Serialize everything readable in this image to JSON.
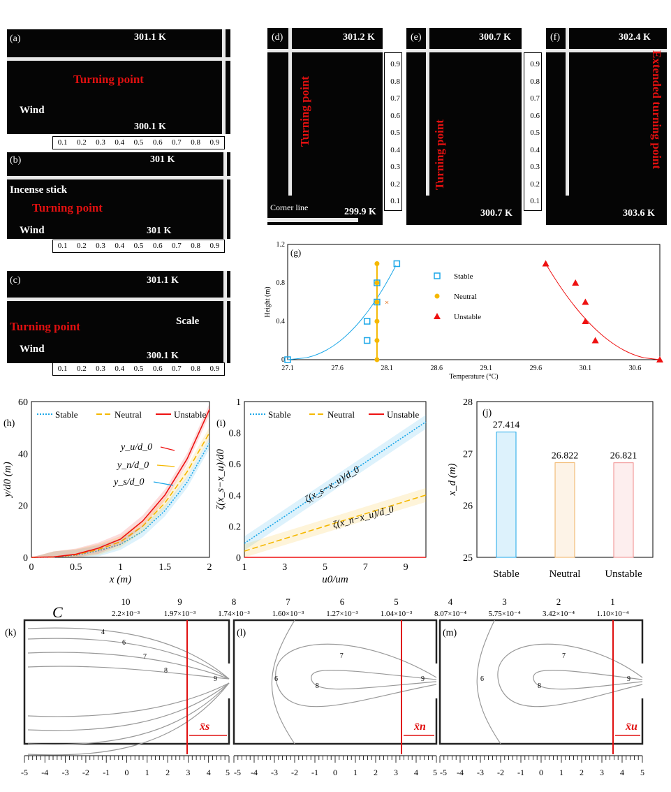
{
  "photos": {
    "a": {
      "label": "(a)",
      "temp_top": "301.1 K",
      "temp_bottom": "300.1 K",
      "turning": "Turning point",
      "wind": "Wind"
    },
    "b": {
      "label": "(b)",
      "temp_top": "301 K",
      "temp_bottom": "301 K",
      "turning": "Turning point",
      "wind": "Wind",
      "incense": "Incense stick"
    },
    "c": {
      "label": "(c)",
      "temp_top": "301.1 K",
      "temp_bottom": "300.1 K",
      "turning": "Turning point",
      "wind": "Wind",
      "scale": "Scale"
    },
    "d": {
      "label": "(d)",
      "temp_top": "301.2 K",
      "temp_bottom": "299.9 K",
      "turning": "Turning point",
      "corner": "Corner line"
    },
    "e": {
      "label": "(e)",
      "temp_top": "300.7 K",
      "temp_bottom": "300.7 K",
      "turning": "Turning point"
    },
    "f": {
      "label": "(f)",
      "temp_top": "302.4 K",
      "temp_bottom": "303.6 K",
      "turning": "Extended turning point"
    },
    "scale_ticks": [
      "0.1",
      "0.2",
      "0.3",
      "0.4",
      "0.5",
      "0.6",
      "0.7",
      "0.8",
      "0.9"
    ]
  },
  "chart_data": [
    {
      "id": "g",
      "label": "(g)",
      "type": "scatter",
      "xlabel": "Temperature (°C)",
      "ylabel": "Height (m)",
      "xlim": [
        27.1,
        30.85
      ],
      "ylim": [
        0,
        1.2
      ],
      "xticks": [
        "27.1",
        "27.6",
        "28.1",
        "28.6",
        "29.1",
        "29.6",
        "30.1",
        "30.6"
      ],
      "yticks": [
        "0",
        "0.4",
        "0.8",
        "1.2"
      ],
      "series": [
        {
          "name": "Stable",
          "color": "#1ba7e8",
          "marker": "square",
          "points": [
            [
              27.1,
              0
            ],
            [
              27.9,
              0.2
            ],
            [
              27.9,
              0.4
            ],
            [
              28.0,
              0.6
            ],
            [
              28.0,
              0.8
            ],
            [
              28.2,
              1.0
            ]
          ]
        },
        {
          "name": "Neutral",
          "color": "#f5b800",
          "marker": "circle",
          "points": [
            [
              28.0,
              0
            ],
            [
              28.0,
              0.2
            ],
            [
              28.0,
              0.4
            ],
            [
              28.0,
              0.6
            ],
            [
              28.0,
              0.8
            ],
            [
              28.0,
              1.0
            ]
          ]
        },
        {
          "name": "Unstable",
          "color": "#ee1111",
          "marker": "triangle",
          "points": [
            [
              30.85,
              0
            ],
            [
              30.2,
              0.2
            ],
            [
              30.1,
              0.4
            ],
            [
              30.1,
              0.6
            ],
            [
              30.0,
              0.8
            ],
            [
              29.7,
              1.0
            ]
          ]
        }
      ],
      "outlier": [
        28.1,
        0.6
      ],
      "legend": "center"
    },
    {
      "id": "h",
      "label": "(h)",
      "type": "line",
      "xlabel": "x (m)",
      "ylabel": "y/d0 (m)",
      "xlim": [
        0,
        2
      ],
      "ylim": [
        0,
        60
      ],
      "xticks": [
        "0",
        "0.5",
        "1",
        "1.5",
        "2"
      ],
      "yticks": [
        "0",
        "20",
        "40",
        "60"
      ],
      "x": [
        0,
        0.25,
        0.5,
        0.75,
        1,
        1.25,
        1.5,
        1.75,
        2
      ],
      "series": [
        {
          "name": "Stable",
          "color": "#1ba7e8",
          "dash": "dotted",
          "values": [
            0,
            0.1,
            0.8,
            2.5,
            5,
            10,
            18,
            29,
            44
          ]
        },
        {
          "name": "Neutral",
          "color": "#f5b800",
          "dash": "dashed",
          "values": [
            0,
            0.12,
            1,
            3,
            6,
            12,
            21,
            33,
            48
          ]
        },
        {
          "name": "Unstable",
          "color": "#ee1111",
          "dash": "solid",
          "values": [
            0,
            0.15,
            1.2,
            3.5,
            7,
            14,
            24,
            38,
            57
          ]
        }
      ],
      "annotations": [
        "y_u/d_0",
        "y_n/d_0",
        "y_s/d_0"
      ],
      "legend": "top"
    },
    {
      "id": "i",
      "label": "(i)",
      "type": "line",
      "xlabel": "u0/um",
      "ylabel": "ζ(x_s−x_u)/d0",
      "xlim": [
        1,
        10
      ],
      "ylim": [
        0,
        1
      ],
      "xticks": [
        "1",
        "3",
        "5",
        "7",
        "9"
      ],
      "yticks": [
        "0",
        "0.2",
        "0.4",
        "0.6",
        "0.8",
        "1"
      ],
      "x": [
        1,
        10
      ],
      "series": [
        {
          "name": "Stable",
          "color": "#1ba7e8",
          "dash": "dotted",
          "values": [
            0.09,
            0.87
          ]
        },
        {
          "name": "Neutral",
          "color": "#f5b800",
          "dash": "dashed",
          "values": [
            0.04,
            0.4
          ]
        },
        {
          "name": "Unstable",
          "color": "#ee1111",
          "dash": "solid",
          "values": [
            0,
            0
          ]
        }
      ],
      "annotations": [
        "ζ(x_s−x_u)/d_0",
        "ζ(x_n−x_u)/d_0"
      ],
      "legend": "top"
    },
    {
      "id": "j",
      "label": "(j)",
      "type": "bar",
      "ylabel": "x_d (m)",
      "ylim": [
        25,
        28
      ],
      "yticks": [
        "25",
        "26",
        "27",
        "28"
      ],
      "categories": [
        "Stable",
        "Neutral",
        "Unstable"
      ],
      "values": [
        27.414,
        26.822,
        26.821
      ],
      "labels": [
        "27.414",
        "26.822",
        "26.821"
      ],
      "colors": [
        "#1ba7e8",
        "#f0b060",
        "#f08a8a"
      ]
    }
  ],
  "contour": {
    "title": "C",
    "levels": [
      {
        "n": "10",
        "v": "2.2×10⁻³"
      },
      {
        "n": "9",
        "v": "1.97×10⁻³"
      },
      {
        "n": "8",
        "v": "1.74×10⁻³"
      },
      {
        "n": "7",
        "v": "1.60×10⁻³"
      },
      {
        "n": "6",
        "v": "1.27×10⁻³"
      },
      {
        "n": "5",
        "v": "1.04×10⁻³"
      },
      {
        "n": "4",
        "v": "8.07×10⁻⁴"
      },
      {
        "n": "3",
        "v": "5.75×10⁻⁴"
      },
      {
        "n": "2",
        "v": "3.42×10⁻⁴"
      },
      {
        "n": "1",
        "v": "1.10×10⁻⁴"
      }
    ],
    "panels": [
      {
        "label": "(k)",
        "x": "x̄s"
      },
      {
        "label": "(l)",
        "x": "x̄n"
      },
      {
        "label": "(m)",
        "x": "x̄u"
      }
    ],
    "axis_ticks": [
      "-5",
      "-4",
      "-3",
      "-2",
      "-1",
      "0",
      "1",
      "2",
      "3",
      "4",
      "5"
    ]
  }
}
